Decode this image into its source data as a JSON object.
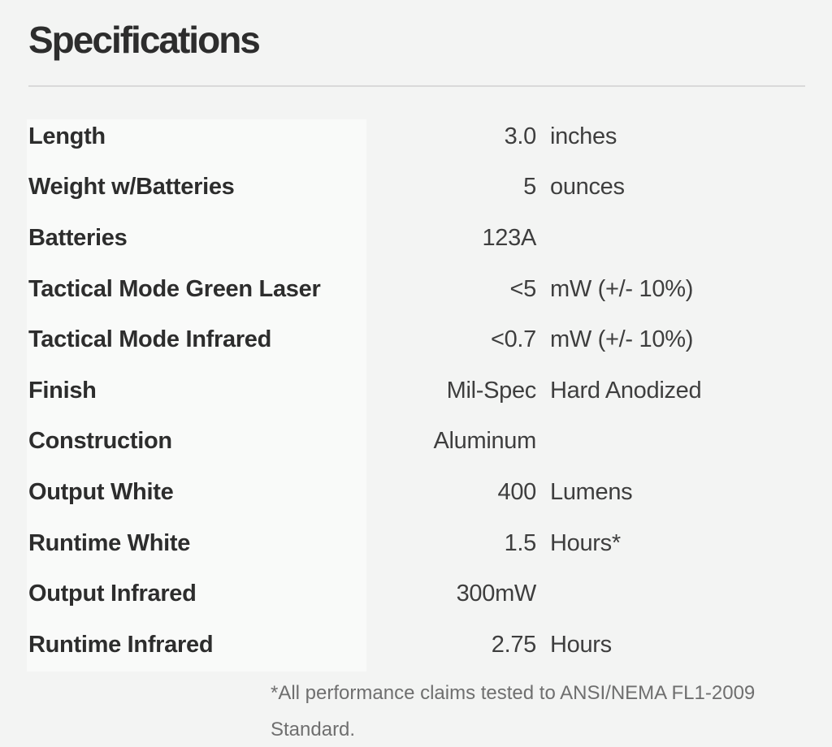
{
  "page": {
    "title": "Specifications"
  },
  "table": {
    "rows": [
      {
        "label": "Length",
        "value": "3.0",
        "unit": "inches"
      },
      {
        "label": "Weight w/Batteries",
        "value": "5",
        "unit": "ounces"
      },
      {
        "label": "Batteries",
        "value": "123A",
        "unit": ""
      },
      {
        "label": "Tactical Mode Green Laser",
        "value": "<5",
        "unit": "mW (+/- 10%)"
      },
      {
        "label": "Tactical Mode Infrared",
        "value": "<0.7",
        "unit": "mW (+/- 10%)"
      },
      {
        "label": "Finish",
        "value": "Mil-Spec",
        "unit": "Hard Anodized"
      },
      {
        "label": "Construction",
        "value": "Aluminum",
        "unit": ""
      },
      {
        "label": "Output White",
        "value": "400",
        "unit": "Lumens"
      },
      {
        "label": "Runtime White",
        "value": "1.5",
        "unit": "Hours*"
      },
      {
        "label": "Output Infrared",
        "value": "300mW",
        "unit": ""
      },
      {
        "label": "Runtime Infrared",
        "value": "2.75",
        "unit": "Hours"
      }
    ],
    "footnote": "*All performance claims tested to ANSI/NEMA FL1-2009 Standard."
  },
  "theme": {
    "page_bg": "#f3f4f3",
    "panel_bg": "#f9faf9",
    "heading_color": "#2d2d2d",
    "label_color": "#2d2d2d",
    "value_color": "#3e3e3e",
    "footnote_color": "#6f6f6f",
    "divider_color": "#d9d9d9"
  }
}
